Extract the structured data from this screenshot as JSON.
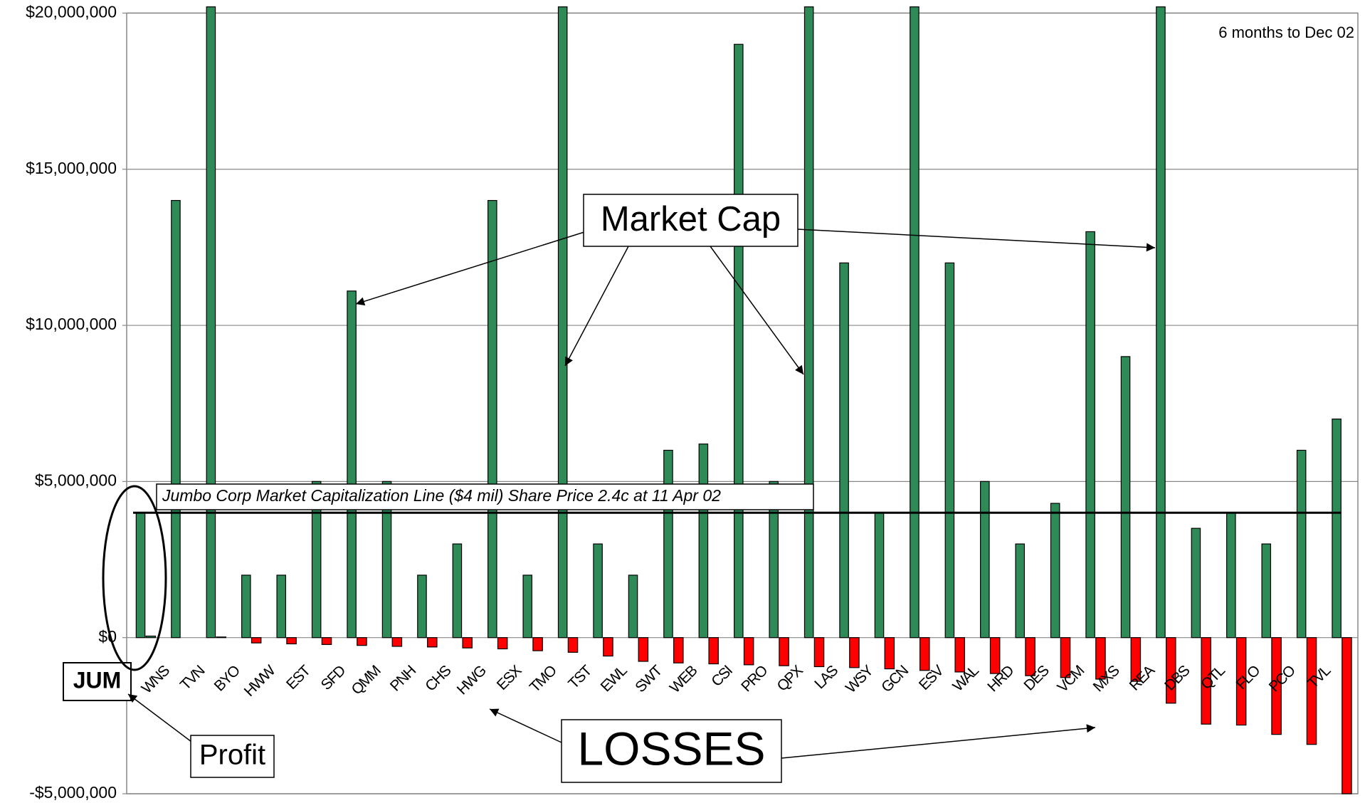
{
  "chart_data": {
    "type": "bar",
    "categories": [
      "JUM",
      "WNS",
      "TVN",
      "BYO",
      "HWW",
      "EST",
      "SFD",
      "QMM",
      "PNH",
      "CHS",
      "HWG",
      "ESX",
      "TMO",
      "TST",
      "EWL",
      "SWT",
      "WEB",
      "CSI",
      "PRO",
      "QPX",
      "LAS",
      "WSY",
      "GCN",
      "ESV",
      "WAL",
      "HRD",
      "DES",
      "VCM",
      "MXS",
      "REA",
      "DBS",
      "QTL",
      "FLO",
      "PCO",
      "TVL"
    ],
    "series": [
      {
        "color": "#2e8b57",
        "values": [
          4000000,
          14000000,
          20200000,
          2000000,
          2000000,
          5000000,
          11100000,
          5000000,
          2000000,
          3000000,
          14000000,
          2000000,
          20200000,
          3000000,
          2000000,
          6000000,
          6200000,
          19000000,
          5000000,
          20200000,
          12000000,
          4000000,
          20200000,
          12000000,
          5000000,
          3000000,
          4300000,
          13000000,
          9000000,
          20200000,
          3500000,
          4000000,
          3000000,
          6000000,
          7000000
        ]
      },
      {
        "color": "#ff0000",
        "positive_color": "#2e8b57",
        "values": [
          50000,
          0,
          20000,
          -170000,
          -200000,
          -220000,
          -250000,
          -280000,
          -300000,
          -330000,
          -360000,
          -420000,
          -470000,
          -590000,
          -760000,
          -810000,
          -840000,
          -870000,
          -900000,
          -930000,
          -960000,
          -1000000,
          -1050000,
          -1100000,
          -1150000,
          -1220000,
          -1280000,
          -1330000,
          -1400000,
          -2100000,
          -2770000,
          -2800000,
          -3100000,
          -3420000,
          -5000000
        ]
      }
    ],
    "ylim": [
      -5000000,
      20000000
    ],
    "yticks": [
      {
        "value": -5000000,
        "label": "-$5,000,000"
      },
      {
        "value": 0,
        "label": "$0"
      },
      {
        "value": 5000000,
        "label": "$5,000,000"
      },
      {
        "value": 10000000,
        "label": "$10,000,000"
      },
      {
        "value": 15000000,
        "label": "$15,000,000"
      },
      {
        "value": 20000000,
        "label": "$20,000,000"
      }
    ],
    "grid": true,
    "negative_tick_color": "#ff0000",
    "reference_line": {
      "value": 4000000,
      "label": "Jumbo Corp Market Capitalization Line ($4 mil) Share Price 2.4c at 11 Apr 02"
    },
    "annotations": {
      "period": "6 months to Dec 02",
      "market_cap": "Market Cap",
      "losses": "LOSSES",
      "profit": "Profit"
    }
  }
}
